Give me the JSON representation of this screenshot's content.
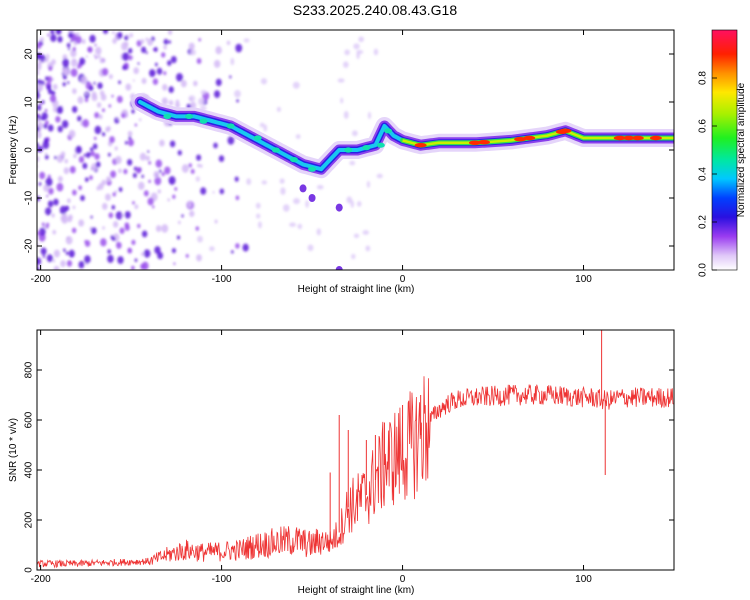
{
  "title": "S233.2025.240.08.43.G18",
  "chart_data": [
    {
      "type": "heatmap",
      "title": "S233.2025.240.08.43.G18",
      "xlabel": "Height of straight line (km)",
      "ylabel": "Frequency (Hz)",
      "xlim": [
        -202,
        150
      ],
      "ylim": [
        -25,
        25
      ],
      "xticks": [
        -200,
        -100,
        0,
        100
      ],
      "yticks": [
        -20,
        -10,
        0,
        10,
        20
      ],
      "ridge": {
        "description": "dominant frequency track",
        "x": [
          -145,
          -135,
          -125,
          -115,
          -105,
          -95,
          -85,
          -75,
          -65,
          -55,
          -45,
          -35,
          -25,
          -15,
          -10,
          -5,
          0,
          10,
          20,
          40,
          60,
          80,
          90,
          100,
          120,
          150
        ],
        "y": [
          10,
          8,
          7,
          7,
          6,
          5,
          3,
          1,
          -1,
          -3,
          -4,
          0,
          0,
          1,
          5,
          3,
          2,
          1,
          1.5,
          1.5,
          2,
          3,
          4,
          2.5,
          2.5,
          2.5
        ]
      },
      "noise_region_x": [
        -202,
        -125
      ]
    },
    {
      "type": "colorbar",
      "label": "Normalized spectral amplitude",
      "range": [
        0.0,
        1.0
      ],
      "ticks": [
        0.0,
        0.2,
        0.4,
        0.6,
        0.8
      ],
      "tick_labels": [
        "0.0",
        "0.2",
        "0.4",
        "0.6",
        "0.8"
      ]
    },
    {
      "type": "line",
      "xlabel": "Height of straight line (km)",
      "ylabel": "SNR (10 * v/v)",
      "xlim": [
        -202,
        150
      ],
      "ylim": [
        0,
        960
      ],
      "xticks": [
        -200,
        -100,
        0,
        100
      ],
      "yticks": [
        0,
        200,
        400,
        600,
        800
      ],
      "color": "#ee3333",
      "series": [
        {
          "name": "SNR",
          "x": [
            -202,
            -180,
            -160,
            -140,
            -130,
            -120,
            -110,
            -100,
            -90,
            -80,
            -70,
            -60,
            -50,
            -45,
            -40,
            -35,
            -30,
            -25,
            -20,
            -15,
            -10,
            -5,
            0,
            5,
            10,
            15,
            20,
            25,
            30,
            40,
            50,
            60,
            70,
            80,
            90,
            100,
            105,
            110,
            115,
            120,
            130,
            140,
            150
          ],
          "y": [
            25,
            25,
            30,
            35,
            60,
            80,
            70,
            75,
            80,
            100,
            110,
            120,
            100,
            120,
            110,
            150,
            250,
            270,
            300,
            360,
            420,
            450,
            470,
            500,
            540,
            600,
            640,
            665,
            680,
            690,
            695,
            700,
            700,
            700,
            695,
            690,
            690,
            680,
            680,
            690,
            690,
            690,
            690
          ]
        }
      ],
      "spikes": {
        "x": [
          -40,
          -35,
          -30,
          -20,
          -15,
          -10,
          0,
          10,
          110,
          112
        ],
        "y": [
          390,
          620,
          560,
          520,
          540,
          590,
          660,
          700,
          960,
          380
        ]
      }
    }
  ]
}
